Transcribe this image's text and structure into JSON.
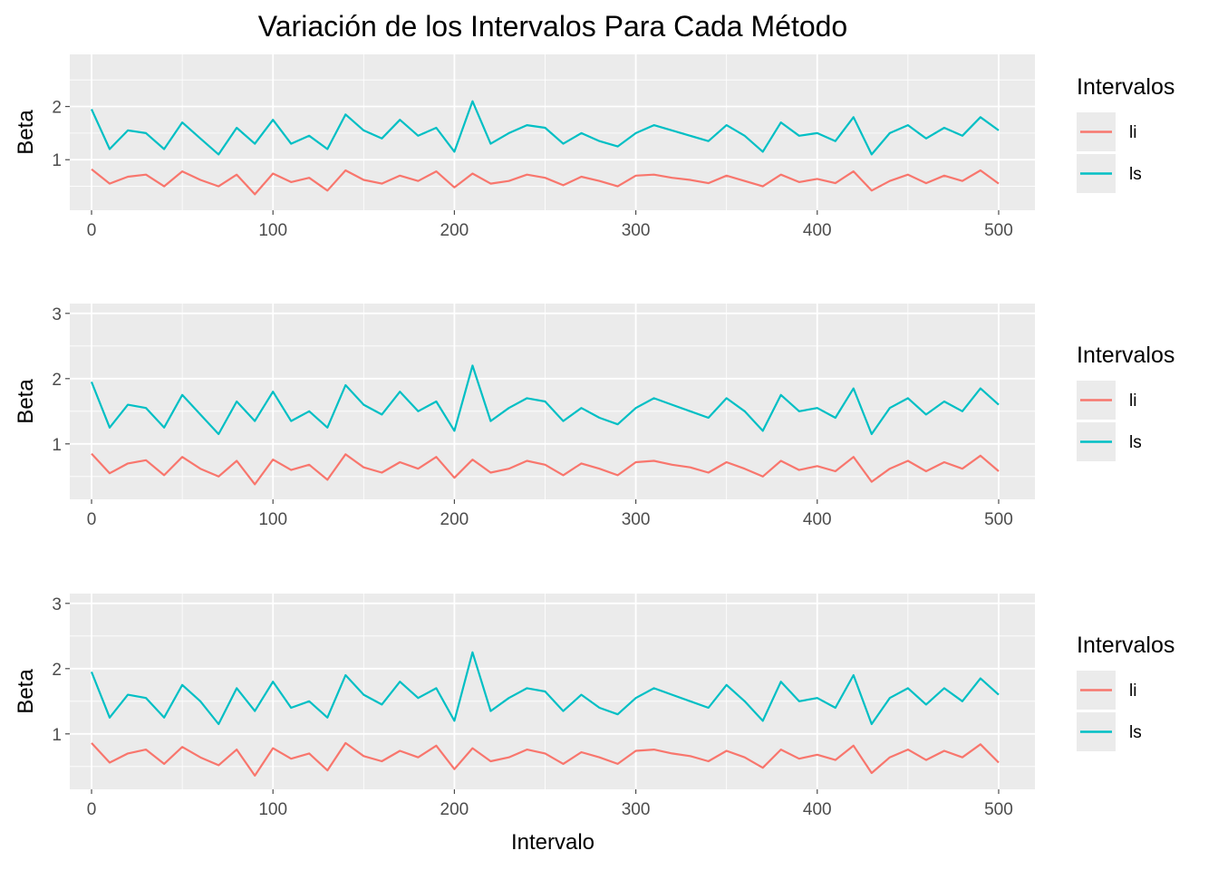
{
  "title": "Variación de los Intervalos Para Cada Método",
  "xlabel": "Intervalo",
  "colors": {
    "li": "#F8766D",
    "ls": "#00BFC4",
    "panel_bg": "#EBEBEB",
    "grid": "#FFFFFF",
    "tick": "#4D4D4D"
  },
  "legend": {
    "title": "Intervalos",
    "items": [
      {
        "key": "li",
        "label": "li"
      },
      {
        "key": "ls",
        "label": "ls"
      }
    ]
  },
  "chart_data": [
    {
      "type": "line",
      "ylabel": "Beta",
      "xlim": [
        -12,
        520
      ],
      "ylim": [
        0.05,
        2.98
      ],
      "xticks": [
        0,
        100,
        200,
        300,
        400,
        500
      ],
      "yticks": [
        1,
        2
      ],
      "legend_position": "right",
      "series": [
        {
          "name": "li",
          "color": "#F8766D",
          "x": [
            0,
            10,
            20,
            30,
            40,
            50,
            60,
            70,
            80,
            90,
            100,
            110,
            120,
            130,
            140,
            150,
            160,
            170,
            180,
            190,
            200,
            210,
            220,
            230,
            240,
            250,
            260,
            270,
            280,
            290,
            300,
            310,
            320,
            330,
            340,
            350,
            360,
            370,
            380,
            390,
            400,
            410,
            420,
            430,
            440,
            450,
            460,
            470,
            480,
            490,
            500
          ],
          "y": [
            0.82,
            0.55,
            0.68,
            0.72,
            0.5,
            0.78,
            0.62,
            0.5,
            0.72,
            0.35,
            0.74,
            0.58,
            0.66,
            0.42,
            0.8,
            0.62,
            0.55,
            0.7,
            0.6,
            0.78,
            0.48,
            0.74,
            0.55,
            0.6,
            0.72,
            0.66,
            0.52,
            0.68,
            0.6,
            0.5,
            0.7,
            0.72,
            0.66,
            0.62,
            0.56,
            0.7,
            0.6,
            0.5,
            0.72,
            0.58,
            0.64,
            0.56,
            0.78,
            0.42,
            0.6,
            0.72,
            0.56,
            0.7,
            0.6,
            0.8,
            0.55
          ]
        },
        {
          "name": "ls",
          "color": "#00BFC4",
          "x": [
            0,
            10,
            20,
            30,
            40,
            50,
            60,
            70,
            80,
            90,
            100,
            110,
            120,
            130,
            140,
            150,
            160,
            170,
            180,
            190,
            200,
            210,
            220,
            230,
            240,
            250,
            260,
            270,
            280,
            290,
            300,
            310,
            320,
            330,
            340,
            350,
            360,
            370,
            380,
            390,
            400,
            410,
            420,
            430,
            440,
            450,
            460,
            470,
            480,
            490,
            500
          ],
          "y": [
            1.95,
            1.2,
            1.55,
            1.5,
            1.2,
            1.7,
            1.4,
            1.1,
            1.6,
            1.3,
            1.75,
            1.3,
            1.45,
            1.2,
            1.85,
            1.55,
            1.4,
            1.75,
            1.45,
            1.6,
            1.15,
            2.1,
            1.3,
            1.5,
            1.65,
            1.6,
            1.3,
            1.5,
            1.35,
            1.25,
            1.5,
            1.65,
            1.55,
            1.45,
            1.35,
            1.65,
            1.45,
            1.15,
            1.7,
            1.45,
            1.5,
            1.35,
            1.8,
            1.1,
            1.5,
            1.65,
            1.4,
            1.6,
            1.45,
            1.8,
            1.55
          ]
        }
      ]
    },
    {
      "type": "line",
      "ylabel": "Beta",
      "xlim": [
        -12,
        520
      ],
      "ylim": [
        0.15,
        3.15
      ],
      "xticks": [
        0,
        100,
        200,
        300,
        400,
        500
      ],
      "yticks": [
        1,
        2,
        3
      ],
      "legend_position": "right",
      "series": [
        {
          "name": "li",
          "color": "#F8766D",
          "x": [
            0,
            10,
            20,
            30,
            40,
            50,
            60,
            70,
            80,
            90,
            100,
            110,
            120,
            130,
            140,
            150,
            160,
            170,
            180,
            190,
            200,
            210,
            220,
            230,
            240,
            250,
            260,
            270,
            280,
            290,
            300,
            310,
            320,
            330,
            340,
            350,
            360,
            370,
            380,
            390,
            400,
            410,
            420,
            430,
            440,
            450,
            460,
            470,
            480,
            490,
            500
          ],
          "y": [
            0.85,
            0.55,
            0.7,
            0.75,
            0.52,
            0.8,
            0.62,
            0.5,
            0.74,
            0.38,
            0.76,
            0.6,
            0.68,
            0.45,
            0.84,
            0.64,
            0.56,
            0.72,
            0.62,
            0.8,
            0.48,
            0.76,
            0.56,
            0.62,
            0.74,
            0.68,
            0.52,
            0.7,
            0.62,
            0.52,
            0.72,
            0.74,
            0.68,
            0.64,
            0.56,
            0.72,
            0.62,
            0.5,
            0.74,
            0.6,
            0.66,
            0.58,
            0.8,
            0.42,
            0.62,
            0.74,
            0.58,
            0.72,
            0.62,
            0.82,
            0.58
          ]
        },
        {
          "name": "ls",
          "color": "#00BFC4",
          "x": [
            0,
            10,
            20,
            30,
            40,
            50,
            60,
            70,
            80,
            90,
            100,
            110,
            120,
            130,
            140,
            150,
            160,
            170,
            180,
            190,
            200,
            210,
            220,
            230,
            240,
            250,
            260,
            270,
            280,
            290,
            300,
            310,
            320,
            330,
            340,
            350,
            360,
            370,
            380,
            390,
            400,
            410,
            420,
            430,
            440,
            450,
            460,
            470,
            480,
            490,
            500
          ],
          "y": [
            1.95,
            1.25,
            1.6,
            1.55,
            1.25,
            1.75,
            1.45,
            1.15,
            1.65,
            1.35,
            1.8,
            1.35,
            1.5,
            1.25,
            1.9,
            1.6,
            1.45,
            1.8,
            1.5,
            1.65,
            1.2,
            2.2,
            1.35,
            1.55,
            1.7,
            1.65,
            1.35,
            1.55,
            1.4,
            1.3,
            1.55,
            1.7,
            1.6,
            1.5,
            1.4,
            1.7,
            1.5,
            1.2,
            1.75,
            1.5,
            1.55,
            1.4,
            1.85,
            1.15,
            1.55,
            1.7,
            1.45,
            1.65,
            1.5,
            1.85,
            1.6
          ]
        }
      ]
    },
    {
      "type": "line",
      "ylabel": "Beta",
      "xlim": [
        -12,
        520
      ],
      "ylim": [
        0.15,
        3.15
      ],
      "xticks": [
        0,
        100,
        200,
        300,
        400,
        500
      ],
      "yticks": [
        1,
        2,
        3
      ],
      "legend_position": "right",
      "series": [
        {
          "name": "li",
          "color": "#F8766D",
          "x": [
            0,
            10,
            20,
            30,
            40,
            50,
            60,
            70,
            80,
            90,
            100,
            110,
            120,
            130,
            140,
            150,
            160,
            170,
            180,
            190,
            200,
            210,
            220,
            230,
            240,
            250,
            260,
            270,
            280,
            290,
            300,
            310,
            320,
            330,
            340,
            350,
            360,
            370,
            380,
            390,
            400,
            410,
            420,
            430,
            440,
            450,
            460,
            470,
            480,
            490,
            500
          ],
          "y": [
            0.86,
            0.56,
            0.7,
            0.76,
            0.54,
            0.8,
            0.64,
            0.52,
            0.76,
            0.36,
            0.78,
            0.62,
            0.7,
            0.44,
            0.86,
            0.66,
            0.58,
            0.74,
            0.64,
            0.82,
            0.46,
            0.78,
            0.58,
            0.64,
            0.76,
            0.7,
            0.54,
            0.72,
            0.64,
            0.54,
            0.74,
            0.76,
            0.7,
            0.66,
            0.58,
            0.74,
            0.64,
            0.48,
            0.76,
            0.62,
            0.68,
            0.6,
            0.82,
            0.4,
            0.64,
            0.76,
            0.6,
            0.74,
            0.64,
            0.84,
            0.56
          ]
        },
        {
          "name": "ls",
          "color": "#00BFC4",
          "x": [
            0,
            10,
            20,
            30,
            40,
            50,
            60,
            70,
            80,
            90,
            100,
            110,
            120,
            130,
            140,
            150,
            160,
            170,
            180,
            190,
            200,
            210,
            220,
            230,
            240,
            250,
            260,
            270,
            280,
            290,
            300,
            310,
            320,
            330,
            340,
            350,
            360,
            370,
            380,
            390,
            400,
            410,
            420,
            430,
            440,
            450,
            460,
            470,
            480,
            490,
            500
          ],
          "y": [
            1.95,
            1.25,
            1.6,
            1.55,
            1.25,
            1.75,
            1.5,
            1.15,
            1.7,
            1.35,
            1.8,
            1.4,
            1.5,
            1.25,
            1.9,
            1.6,
            1.45,
            1.8,
            1.55,
            1.7,
            1.2,
            2.25,
            1.35,
            1.55,
            1.7,
            1.65,
            1.35,
            1.6,
            1.4,
            1.3,
            1.55,
            1.7,
            1.6,
            1.5,
            1.4,
            1.75,
            1.5,
            1.2,
            1.8,
            1.5,
            1.55,
            1.4,
            1.9,
            1.15,
            1.55,
            1.7,
            1.45,
            1.7,
            1.5,
            1.85,
            1.6
          ]
        }
      ]
    }
  ]
}
